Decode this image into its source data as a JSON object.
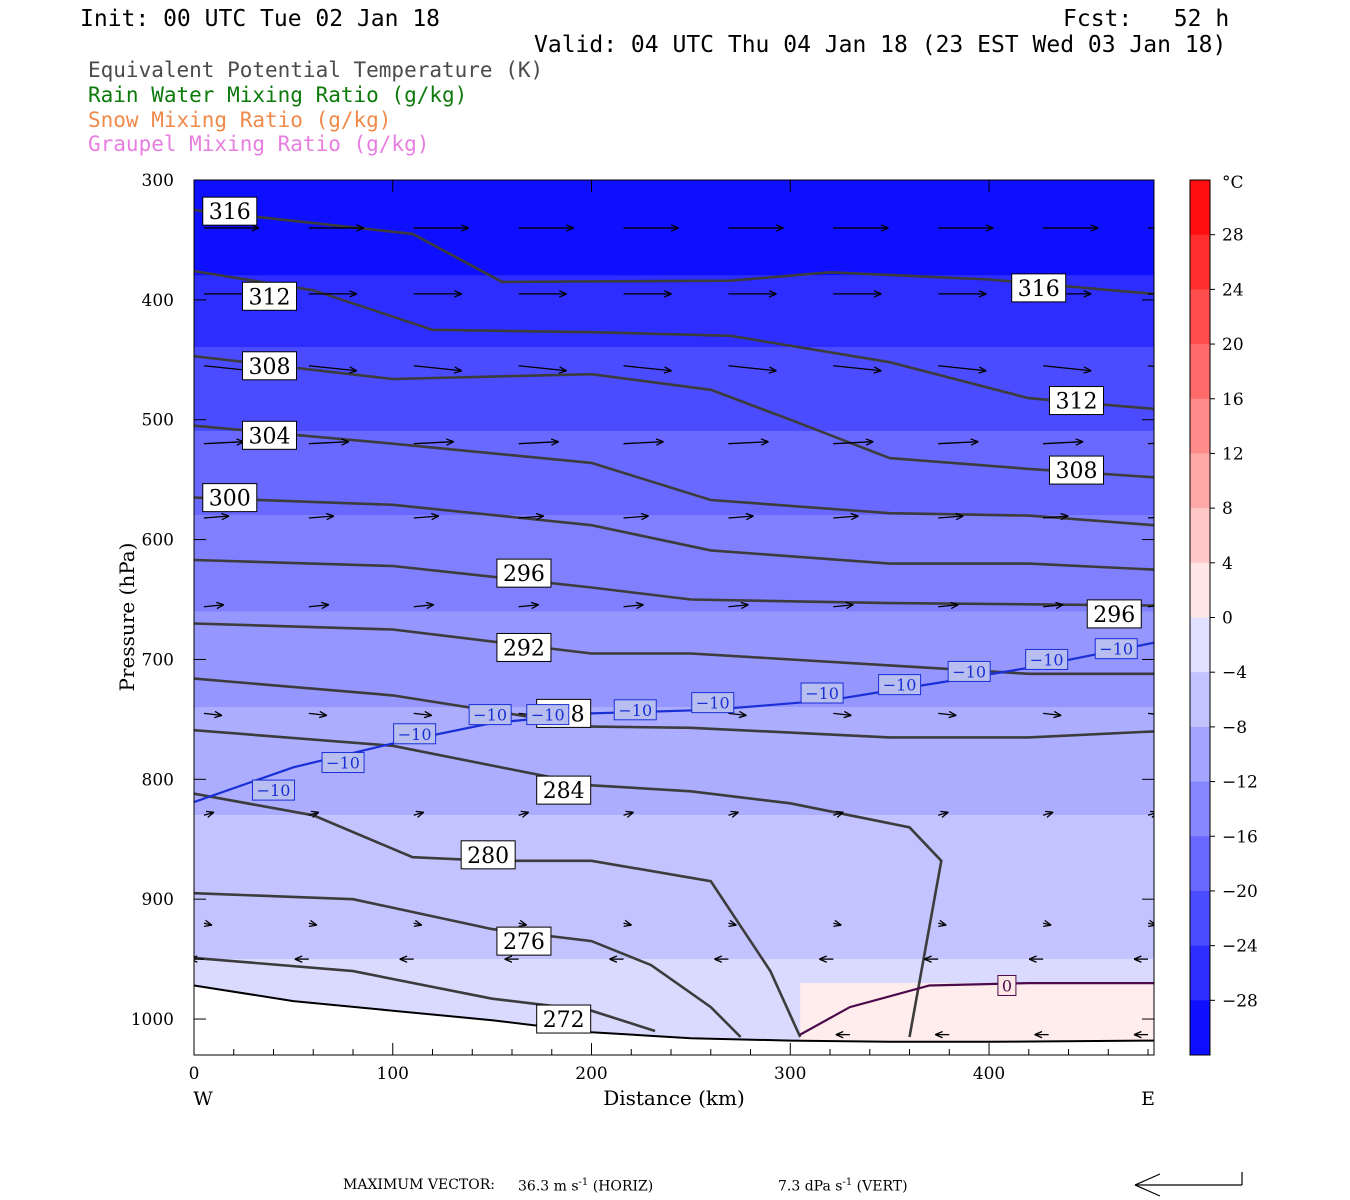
{
  "header": {
    "init": "Init: 00 UTC Tue 02 Jan 18",
    "fcst": "Fcst:   52 h",
    "valid": "Valid: 04 UTC Thu 04 Jan 18 (23 EST Wed 03 Jan 18)"
  },
  "legend": [
    {
      "text": "Equivalent Potential Temperature (K)",
      "color": "#4a4a4a"
    },
    {
      "text": "Rain Water Mixing Ratio (g/kg)",
      "color": "#0b7a0b"
    },
    {
      "text": "Snow Mixing Ratio (g/kg)",
      "color": "#f08a4b"
    },
    {
      "text": "Graupel Mixing Ratio (g/kg)",
      "color": "#e87ee0"
    }
  ],
  "footer": {
    "max_vector_label": "MAXIMUM VECTOR:",
    "horiz": "36.3 m s",
    "horiz_exp": "-1",
    "horiz_tag": "(HORIZ)",
    "vert": "7.3 dPa s",
    "vert_exp": "-1",
    "vert_tag": "(VERT)"
  },
  "chart_data": {
    "type": "heatmap",
    "xlabel": "Distance (km)",
    "ylabel": "Pressure (hPa)",
    "xlim": [
      0,
      483
    ],
    "ylim": [
      300,
      1030
    ],
    "x_ticks": [
      0,
      100,
      200,
      300,
      400
    ],
    "y_ticks": [
      300,
      400,
      500,
      600,
      700,
      800,
      900,
      1000
    ],
    "x_left_label": "W",
    "x_right_label": "E",
    "colorbar": {
      "unit": "°C",
      "min": -32,
      "max": 32,
      "step": 4,
      "tick_labels": [
        "28",
        "24",
        "20",
        "16",
        "12",
        "8",
        "4",
        "0",
        "-4",
        "-8",
        "-12",
        "-16",
        "-20",
        "-24",
        "-28"
      ]
    },
    "temperature_shading": [
      {
        "p_top": 300,
        "p_bottom": 380,
        "temp": -30
      },
      {
        "p_top": 380,
        "p_bottom": 440,
        "temp": -26
      },
      {
        "p_top": 440,
        "p_bottom": 510,
        "temp": -22
      },
      {
        "p_top": 510,
        "p_bottom": 580,
        "temp": -18
      },
      {
        "p_top": 580,
        "p_bottom": 660,
        "temp": -15
      },
      {
        "p_top": 660,
        "p_bottom": 740,
        "temp": -12
      },
      {
        "p_top": 740,
        "p_bottom": 830,
        "temp": -9
      },
      {
        "p_top": 830,
        "p_bottom": 950,
        "temp": -6
      },
      {
        "p_top": 950,
        "p_bottom": 1030,
        "temp": -3
      }
    ],
    "warm_layer": {
      "x_start": 305,
      "x_end": 483,
      "p_top": 970,
      "p_bottom": 1020,
      "temp": 1,
      "label": "0",
      "label_x": 409,
      "label_p": 972
    },
    "theta_e_contours": [
      {
        "value": 316,
        "points": [
          [
            0,
            325
          ],
          [
            110,
            345
          ],
          [
            155,
            385
          ],
          [
            270,
            384
          ],
          [
            320,
            377
          ],
          [
            400,
            383
          ],
          [
            483,
            395
          ]
        ],
        "labels": [
          {
            "x": 18,
            "p": 326
          },
          {
            "x": 425,
            "p": 390
          }
        ]
      },
      {
        "value": 312,
        "points": [
          [
            0,
            376
          ],
          [
            60,
            392
          ],
          [
            120,
            425
          ],
          [
            200,
            427
          ],
          [
            270,
            430
          ],
          [
            350,
            452
          ],
          [
            420,
            482
          ],
          [
            483,
            491
          ]
        ],
        "labels": [
          {
            "x": 38,
            "p": 397
          },
          {
            "x": 444,
            "p": 484
          }
        ]
      },
      {
        "value": 308,
        "points": [
          [
            0,
            447
          ],
          [
            100,
            466
          ],
          [
            200,
            462
          ],
          [
            260,
            475
          ],
          [
            300,
            500
          ],
          [
            350,
            532
          ],
          [
            420,
            541
          ],
          [
            483,
            548
          ]
        ],
        "labels": [
          {
            "x": 38,
            "p": 455
          },
          {
            "x": 444,
            "p": 542
          }
        ]
      },
      {
        "value": 304,
        "points": [
          [
            0,
            505
          ],
          [
            100,
            520
          ],
          [
            200,
            536
          ],
          [
            260,
            567
          ],
          [
            350,
            578
          ],
          [
            420,
            580
          ],
          [
            483,
            588
          ]
        ],
        "labels": [
          {
            "x": 38,
            "p": 513
          }
        ]
      },
      {
        "value": 300,
        "points": [
          [
            0,
            565
          ],
          [
            100,
            571
          ],
          [
            200,
            588
          ],
          [
            260,
            609
          ],
          [
            350,
            620
          ],
          [
            420,
            620
          ],
          [
            483,
            625
          ]
        ],
        "labels": [
          {
            "x": 18,
            "p": 565
          }
        ]
      },
      {
        "value": 296,
        "points": [
          [
            0,
            617
          ],
          [
            100,
            622
          ],
          [
            200,
            640
          ],
          [
            250,
            650
          ],
          [
            350,
            653
          ],
          [
            420,
            654
          ],
          [
            483,
            655
          ]
        ],
        "labels": [
          {
            "x": 166,
            "p": 628
          },
          {
            "x": 463,
            "p": 662
          }
        ]
      },
      {
        "value": 292,
        "points": [
          [
            0,
            670
          ],
          [
            100,
            675
          ],
          [
            200,
            695
          ],
          [
            250,
            695
          ],
          [
            350,
            705
          ],
          [
            420,
            712
          ],
          [
            483,
            712
          ]
        ],
        "labels": [
          {
            "x": 166,
            "p": 690
          }
        ]
      },
      {
        "value": 288,
        "points": [
          [
            0,
            716
          ],
          [
            100,
            730
          ],
          [
            200,
            756
          ],
          [
            250,
            757
          ],
          [
            350,
            765
          ],
          [
            420,
            765
          ],
          [
            483,
            760
          ]
        ],
        "labels": [
          {
            "x": 186,
            "p": 745
          }
        ]
      },
      {
        "value": 284,
        "points": [
          [
            0,
            759
          ],
          [
            100,
            772
          ],
          [
            200,
            805
          ],
          [
            250,
            810
          ],
          [
            300,
            820
          ],
          [
            360,
            840
          ],
          [
            376,
            868
          ],
          [
            360,
            1015
          ]
        ],
        "labels": [
          {
            "x": 186,
            "p": 809
          }
        ]
      },
      {
        "value": 280,
        "points": [
          [
            0,
            812
          ],
          [
            60,
            830
          ],
          [
            110,
            865
          ],
          [
            150,
            868
          ],
          [
            200,
            868
          ],
          [
            260,
            885
          ],
          [
            290,
            960
          ],
          [
            305,
            1015
          ]
        ],
        "labels": [
          {
            "x": 148,
            "p": 863
          }
        ]
      },
      {
        "value": 276,
        "points": [
          [
            0,
            895
          ],
          [
            80,
            900
          ],
          [
            150,
            925
          ],
          [
            200,
            935
          ],
          [
            230,
            955
          ],
          [
            260,
            990
          ],
          [
            275,
            1015
          ]
        ],
        "labels": [
          {
            "x": 166,
            "p": 935
          }
        ]
      },
      {
        "value": 272,
        "points": [
          [
            0,
            949
          ],
          [
            80,
            960
          ],
          [
            150,
            983
          ],
          [
            200,
            993
          ],
          [
            232,
            1010
          ]
        ],
        "labels": [
          {
            "x": 186,
            "p": 1000
          }
        ]
      }
    ],
    "zero_isotherm": {
      "points": [
        [
          305,
          1013
        ],
        [
          330,
          990
        ],
        [
          370,
          972
        ],
        [
          420,
          970
        ],
        [
          483,
          970
        ]
      ]
    },
    "minus10_isotherm": {
      "value": -10,
      "points": [
        [
          0,
          819
        ],
        [
          50,
          790
        ],
        [
          100,
          770
        ],
        [
          150,
          753
        ],
        [
          200,
          745
        ],
        [
          260,
          742
        ],
        [
          320,
          734
        ],
        [
          380,
          718
        ],
        [
          420,
          707
        ],
        [
          483,
          686
        ]
      ],
      "labels": [
        {
          "x": 40,
          "p": 809
        },
        {
          "x": 75,
          "p": 786
        },
        {
          "x": 111,
          "p": 762
        },
        {
          "x": 149,
          "p": 746
        },
        {
          "x": 178,
          "p": 746
        },
        {
          "x": 222,
          "p": 742
        },
        {
          "x": 261,
          "p": 736
        },
        {
          "x": 316,
          "p": 728
        },
        {
          "x": 355,
          "p": 721
        },
        {
          "x": 390,
          "p": 710
        },
        {
          "x": 429,
          "p": 700
        },
        {
          "x": 464,
          "p": 691
        }
      ]
    },
    "terrain": [
      [
        0,
        972
      ],
      [
        50,
        985
      ],
      [
        100,
        993
      ],
      [
        150,
        1001
      ],
      [
        200,
        1011
      ],
      [
        250,
        1016
      ],
      [
        300,
        1018
      ],
      [
        350,
        1019
      ],
      [
        400,
        1019
      ],
      [
        483,
        1018
      ]
    ],
    "wind_rows": [
      {
        "p": 340,
        "x_start": 5,
        "x_end": 480,
        "count": 10,
        "dx": 55,
        "dy": 0
      },
      {
        "p": 395,
        "x_start": 5,
        "x_end": 480,
        "count": 10,
        "dx": 48,
        "dy": 0
      },
      {
        "p": 455,
        "x_start": 5,
        "x_end": 480,
        "count": 10,
        "dx": 48,
        "dy": 5
      },
      {
        "p": 520,
        "x_start": 5,
        "x_end": 480,
        "count": 10,
        "dx": 40,
        "dy": -2
      },
      {
        "p": 582,
        "x_start": 5,
        "x_end": 480,
        "count": 10,
        "dx": 25,
        "dy": -2
      },
      {
        "p": 656,
        "x_start": 5,
        "x_end": 480,
        "count": 10,
        "dx": 20,
        "dy": -2
      },
      {
        "p": 745,
        "x_start": 5,
        "x_end": 480,
        "count": 10,
        "dx": 18,
        "dy": 2
      },
      {
        "p": 830,
        "x_start": 5,
        "x_end": 480,
        "count": 10,
        "dx": 10,
        "dy": -3
      },
      {
        "p": 920,
        "x_start": 5,
        "x_end": 480,
        "count": 10,
        "dx": 8,
        "dy": 2
      },
      {
        "p": 950,
        "x_start": 5,
        "x_end": 480,
        "count": 10,
        "dx": -14,
        "dy": 0
      },
      {
        "p": 1013,
        "x_start": 330,
        "x_end": 480,
        "count": 4,
        "dx": -14,
        "dy": 0
      }
    ]
  }
}
